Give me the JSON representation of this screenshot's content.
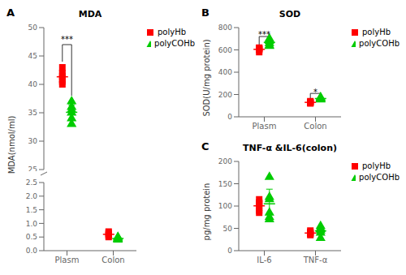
{
  "chart_data": [
    {
      "type": "scatter",
      "panel": "A",
      "title": "MDA",
      "y_label": "MDA(nmol/ml)",
      "categories": [
        "Plasm",
        "Colon"
      ],
      "broken_axis": [
        {
          "ylim": [
            25,
            50
          ],
          "yticks": [
            25,
            30,
            35,
            40,
            45,
            50
          ],
          "tick_labels": "y"
        },
        {
          "ylim": [
            0,
            2.5
          ],
          "yticks": [
            {
              "value": 0,
              "label": "0.0"
            },
            0.5,
            {
              "value": 1,
              "label": "1.0"
            },
            1.5,
            {
              "value": 2,
              "label": "2.0"
            },
            2.5
          ]
        }
      ],
      "series": [
        {
          "name": "polyHb",
          "color": "#FF0000",
          "marker": "square",
          "values": [
            [
              40,
              41,
              42,
              43,
              41.5,
              40.5
            ],
            [
              0.5,
              0.6,
              0.55,
              0.7,
              0.65
            ]
          ],
          "mean": [
            41.3333,
            0.6
          ],
          "sd": [
            0.986013,
            0.0707107
          ]
        },
        {
          "name": "polyCOHb",
          "color": "#00CC00",
          "marker": "triangle",
          "values": [
            [
              34,
              35,
              36,
              37,
              35.5,
              33
            ],
            [
              0.4,
              0.42,
              0.45,
              0.48,
              0.43,
              0.5
            ]
          ],
          "mean": [
            35.0833,
            0.446667
          ],
          "sd": [
            1.304373,
            0.0344803
          ]
        }
      ],
      "annotations": [
        {
          "text": "***",
          "category": "Plasm",
          "y": 48,
          "bracket_y": 47,
          "series_y": [
            44,
            38
          ]
        }
      ],
      "legend": "right",
      "grid": false
    },
    {
      "type": "scatter",
      "panel": "B",
      "title": "SOD",
      "y_label": "SOD(U/mg protein)",
      "categories": [
        "Plasm",
        "Colon"
      ],
      "ylim": [
        0,
        800
      ],
      "yticks": [
        0,
        200,
        400,
        600,
        800
      ],
      "series": [
        {
          "name": "polyHb",
          "color": "#FF0000",
          "marker": "square",
          "values": [
            [
              580,
              610,
              620,
              615,
              600,
              605
            ],
            [
              120,
              130,
              135,
              125,
              140,
              128
            ]
          ],
          "mean": [
            605,
            129.6667
          ],
          "sd": [
            12.9099,
            6.49786
          ]
        },
        {
          "name": "polyCOHb",
          "color": "#00CC00",
          "marker": "triangle",
          "values": [
            [
              640,
              660,
              680,
              700,
              690,
              635
            ],
            [
              155,
              160,
              170,
              165,
              175,
              158
            ]
          ],
          "mean": [
            667.5,
            163.8333
          ],
          "sd": [
            24.4523,
            6.9622
          ]
        }
      ],
      "annotations": [
        {
          "text": "***",
          "category": "Plasm",
          "y": 735,
          "bracket_y": 720,
          "series_y": [
            625,
            700
          ]
        },
        {
          "text": "*",
          "category": "Colon",
          "y": 220,
          "bracket_y": 210,
          "series_y": [
            143,
            177
          ]
        }
      ],
      "legend": "right",
      "grid": false
    },
    {
      "type": "scatter",
      "panel": "C",
      "title": "TNF-α &IL-6(colon)",
      "y_label": "pg/mg protein",
      "categories": [
        "IL-6",
        "TNF-α"
      ],
      "ylim": [
        0,
        200
      ],
      "yticks": [
        0,
        50,
        100,
        150,
        200
      ],
      "series": [
        {
          "name": "polyHb",
          "color": "#FF0000",
          "marker": "square",
          "values": [
            [
              108,
              90,
              105,
              115,
              100,
              85
            ],
            [
              35,
              38,
              42,
              45,
              40,
              37
            ]
          ],
          "mean": [
            100.5,
            39.5
          ],
          "sd": [
            10.30776,
            3.30404
          ]
        },
        {
          "name": "polyCOHb",
          "color": "#00CC00",
          "marker": "triangle",
          "values": [
            [
              70,
              85,
              115,
              120,
              165,
              75
            ],
            [
              28,
              40,
              45,
              50,
              55,
              48
            ]
          ],
          "mean": [
            105,
            44.3333
          ],
          "sd": [
            32.78719,
            8.61523
          ]
        }
      ],
      "legend": "right",
      "grid": false
    }
  ]
}
